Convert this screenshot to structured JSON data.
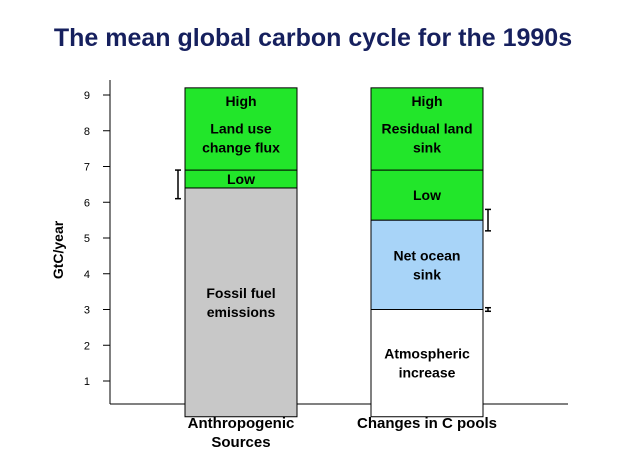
{
  "title": "The mean global carbon cycle for the 1990s",
  "chart_data": {
    "type": "bar",
    "stacked": true,
    "ylabel": "GtC/year",
    "ylim": [
      0,
      9.5
    ],
    "yticks": [
      "1",
      "2",
      "3",
      "4",
      "5",
      "6",
      "7",
      "8",
      "9"
    ],
    "categories": [
      "Anthropogenic Sources",
      "Changes in C pools"
    ],
    "category_lines": [
      [
        "Anthropogenic",
        "Sources"
      ],
      [
        "Changes in C pools"
      ]
    ],
    "bars": [
      {
        "segments": [
          {
            "lines": [
              "Fossil fuel",
              "emissions"
            ],
            "from": 0,
            "to": 6.4,
            "color": "#c8c8c8"
          },
          {
            "lines": [
              "Low"
            ],
            "from": 6.4,
            "to": 6.9,
            "color": "#22e62a"
          },
          {
            "lines": [
              "High",
              "Land use",
              "change flux"
            ],
            "from": 6.9,
            "to": 9.2,
            "color": "#22e62a"
          }
        ],
        "error_bars": [
          {
            "center": 6.5,
            "low": 6.1,
            "high": 6.9
          }
        ]
      },
      {
        "segments": [
          {
            "lines": [
              "Atmospheric",
              "increase"
            ],
            "from": 0,
            "to": 3.0,
            "color": "#ffffff"
          },
          {
            "lines": [
              "Net ocean",
              "sink"
            ],
            "from": 3.0,
            "to": 5.5,
            "color": "#a8d4f8"
          },
          {
            "lines": [
              "Low"
            ],
            "from": 5.5,
            "to": 6.9,
            "color": "#22e62a"
          },
          {
            "lines": [
              "High",
              "Residual land",
              "sink"
            ],
            "from": 6.9,
            "to": 9.2,
            "color": "#22e62a"
          }
        ],
        "error_bars": [
          {
            "center": 5.5,
            "low": 5.2,
            "high": 5.8
          },
          {
            "center": 3.0,
            "low": 2.95,
            "high": 3.05
          }
        ]
      }
    ],
    "colors": {
      "green": "#22e62a",
      "gray": "#c8c8c8",
      "blue": "#a8d4f8",
      "title": "#16205e"
    }
  }
}
